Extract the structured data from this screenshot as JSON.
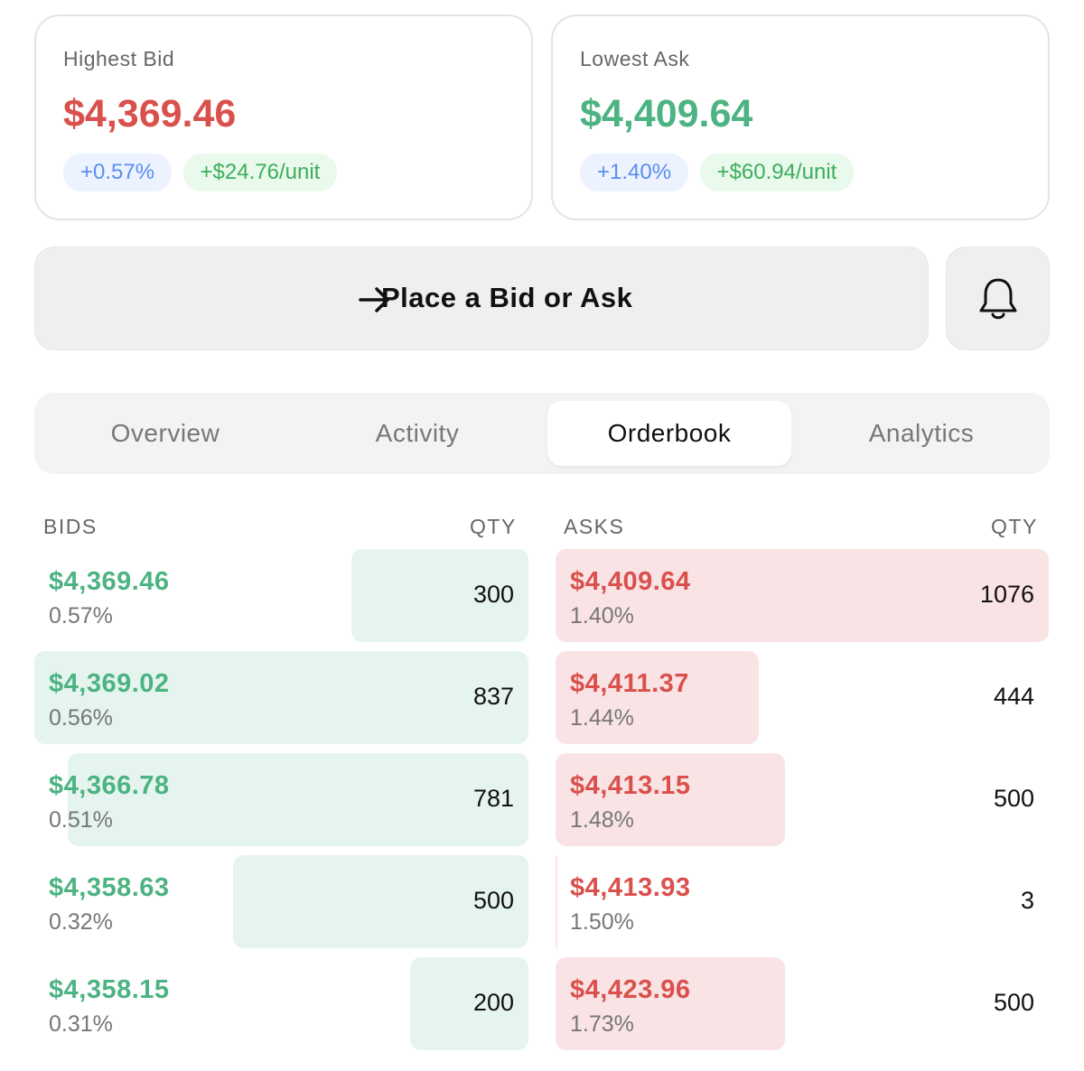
{
  "highest_bid": {
    "label": "Highest Bid",
    "price": "$4,369.46",
    "change_pct": "+0.57%",
    "change_unit": "+$24.76/unit"
  },
  "lowest_ask": {
    "label": "Lowest Ask",
    "price": "$4,409.64",
    "change_pct": "+1.40%",
    "change_unit": "+$60.94/unit"
  },
  "action_button": {
    "label": "Place a Bid or Ask"
  },
  "tabs": [
    "Overview",
    "Activity",
    "Orderbook",
    "Analytics"
  ],
  "active_tab": "Orderbook",
  "orderbook": {
    "bids_header": "BIDS",
    "bids_qty_header": "QTY",
    "asks_header": "ASKS",
    "asks_qty_header": "QTY",
    "bids": [
      {
        "price": "$4,369.46",
        "pct": "0.57%",
        "qty": 300
      },
      {
        "price": "$4,369.02",
        "pct": "0.56%",
        "qty": 837
      },
      {
        "price": "$4,366.78",
        "pct": "0.51%",
        "qty": 781
      },
      {
        "price": "$4,358.63",
        "pct": "0.32%",
        "qty": 500
      },
      {
        "price": "$4,358.15",
        "pct": "0.31%",
        "qty": 200
      }
    ],
    "asks": [
      {
        "price": "$4,409.64",
        "pct": "1.40%",
        "qty": 1076
      },
      {
        "price": "$4,411.37",
        "pct": "1.44%",
        "qty": 444
      },
      {
        "price": "$4,413.15",
        "pct": "1.48%",
        "qty": 500
      },
      {
        "price": "$4,413.93",
        "pct": "1.50%",
        "qty": 3
      },
      {
        "price": "$4,423.96",
        "pct": "1.73%",
        "qty": 500
      }
    ]
  }
}
